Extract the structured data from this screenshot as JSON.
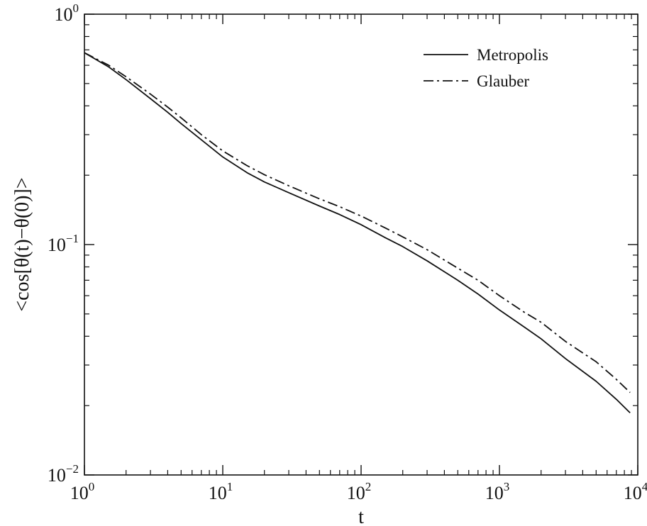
{
  "chart_data": {
    "type": "line",
    "title": "",
    "xlabel": "t",
    "ylabel": "<cos[θ(t)−θ(0)]>",
    "xscale": "log",
    "yscale": "log",
    "xlim": [
      1,
      10000
    ],
    "ylim": [
      0.01,
      1
    ],
    "x_ticks": [
      {
        "base": "10",
        "exp": "0",
        "value": 1
      },
      {
        "base": "10",
        "exp": "1",
        "value": 10
      },
      {
        "base": "10",
        "exp": "2",
        "value": 100
      },
      {
        "base": "10",
        "exp": "3",
        "value": 1000
      },
      {
        "base": "10",
        "exp": "4",
        "value": 10000
      }
    ],
    "y_ticks": [
      {
        "base": "10",
        "exp": "−2",
        "value": 0.01
      },
      {
        "base": "10",
        "exp": "−1",
        "value": 0.1
      },
      {
        "base": "10",
        "exp": "0",
        "value": 1
      }
    ],
    "grid": false,
    "legend_position": "top-right",
    "series": [
      {
        "name": "Metropolis",
        "style": "solid",
        "color": "#111111",
        "points": [
          [
            1,
            0.68
          ],
          [
            1.5,
            0.59
          ],
          [
            2,
            0.52
          ],
          [
            3,
            0.43
          ],
          [
            4,
            0.375
          ],
          [
            5,
            0.335
          ],
          [
            7,
            0.285
          ],
          [
            10,
            0.24
          ],
          [
            15,
            0.205
          ],
          [
            20,
            0.187
          ],
          [
            30,
            0.168
          ],
          [
            50,
            0.147
          ],
          [
            70,
            0.135
          ],
          [
            100,
            0.122
          ],
          [
            150,
            0.107
          ],
          [
            200,
            0.098
          ],
          [
            300,
            0.085
          ],
          [
            500,
            0.07
          ],
          [
            700,
            0.061
          ],
          [
            1000,
            0.052
          ],
          [
            1500,
            0.044
          ],
          [
            2000,
            0.039
          ],
          [
            3000,
            0.032
          ],
          [
            5000,
            0.0255
          ],
          [
            7000,
            0.0213
          ],
          [
            8800,
            0.0186
          ]
        ]
      },
      {
        "name": "Glauber",
        "style": "dash-dot",
        "color": "#111111",
        "points": [
          [
            1,
            0.68
          ],
          [
            1.5,
            0.6
          ],
          [
            2,
            0.535
          ],
          [
            3,
            0.45
          ],
          [
            4,
            0.395
          ],
          [
            5,
            0.355
          ],
          [
            7,
            0.3
          ],
          [
            10,
            0.255
          ],
          [
            15,
            0.22
          ],
          [
            20,
            0.201
          ],
          [
            30,
            0.18
          ],
          [
            50,
            0.158
          ],
          [
            70,
            0.146
          ],
          [
            100,
            0.133
          ],
          [
            150,
            0.118
          ],
          [
            200,
            0.108
          ],
          [
            300,
            0.095
          ],
          [
            500,
            0.079
          ],
          [
            700,
            0.07
          ],
          [
            1000,
            0.06
          ],
          [
            1500,
            0.051
          ],
          [
            2000,
            0.046
          ],
          [
            3000,
            0.038
          ],
          [
            5000,
            0.031
          ],
          [
            7000,
            0.026
          ],
          [
            8800,
            0.0228
          ]
        ]
      }
    ]
  }
}
